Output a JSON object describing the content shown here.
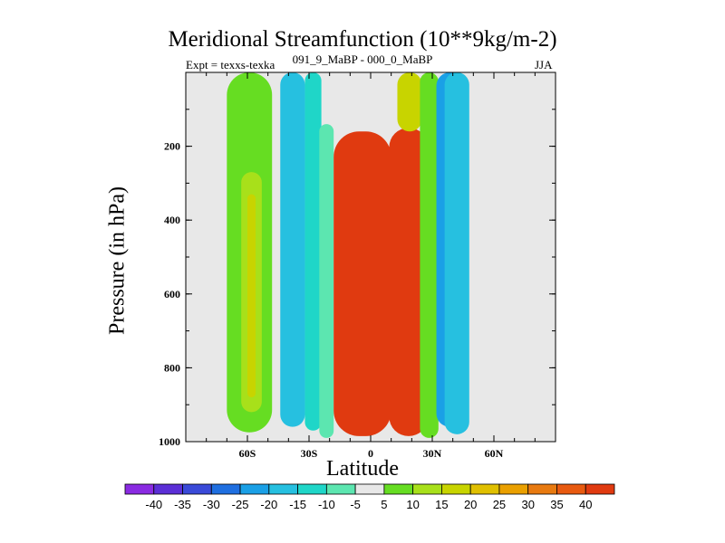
{
  "chart_data": {
    "type": "heatmap",
    "title": "Meridional Streamfunction (10**9kg/m-2)",
    "subtitle_left": "Expt = texxs-texka",
    "subtitle_center": "091_9_MaBP - 000_0_MaBP",
    "subtitle_right": "JJA",
    "xlabel": "Latitude",
    "ylabel": "Pressure (in hPa)",
    "xlim": [
      -90,
      90
    ],
    "ylim": [
      1000,
      0
    ],
    "xticks": [
      {
        "value": -60,
        "label": "60S"
      },
      {
        "value": -30,
        "label": "30S"
      },
      {
        "value": 0,
        "label": "0"
      },
      {
        "value": 30,
        "label": "30N"
      },
      {
        "value": 60,
        "label": "60N"
      }
    ],
    "yticks": [
      {
        "value": 200,
        "label": "200"
      },
      {
        "value": 400,
        "label": "400"
      },
      {
        "value": 600,
        "label": "600"
      },
      {
        "value": 800,
        "label": "800"
      },
      {
        "value": 1000,
        "label": "1000"
      }
    ],
    "colorbar": {
      "levels": [
        "-40",
        "-35",
        "-30",
        "-25",
        "-20",
        "-15",
        "-10",
        "-5",
        "5",
        "10",
        "15",
        "20",
        "25",
        "30",
        "35",
        "40"
      ],
      "colors": [
        "#8a2be2",
        "#5b2fd6",
        "#3a4ad8",
        "#1f6fe0",
        "#1aa0e6",
        "#26c0e0",
        "#1fd6c8",
        "#5ce6b0",
        "#e8e8e8",
        "#66dd22",
        "#a8e01a",
        "#c8d400",
        "#e0c000",
        "#eaa000",
        "#e87a10",
        "#e85a10",
        "#e03a10"
      ]
    },
    "contour_regions": [
      {
        "name": "lat-40-green-cell",
        "color": "#66dd22",
        "lat_range": [
          -70,
          -48
        ],
        "p_range": [
          975,
          0
        ]
      },
      {
        "name": "lat-40-core",
        "color": "#a8e01a",
        "lat_range": [
          -63,
          -53
        ],
        "p_range": [
          920,
          270
        ]
      },
      {
        "name": "lat-40-inner-core",
        "color": "#c8d400",
        "lat_range": [
          -60,
          -56
        ],
        "p_range": [
          880,
          330
        ]
      },
      {
        "name": "subtropical-south-cyan",
        "color": "#26c0e0",
        "lat_range": [
          -44,
          -32
        ],
        "p_range": [
          960,
          0
        ]
      },
      {
        "name": "subtropical-south-teal",
        "color": "#1fd6c8",
        "lat_range": [
          -32,
          -24
        ],
        "p_range": [
          970,
          0
        ]
      },
      {
        "name": "tropical-south-edge",
        "color": "#5ce6b0",
        "lat_range": [
          -25,
          -18
        ],
        "p_range": [
          990,
          140
        ]
      },
      {
        "name": "south-hadley-cell",
        "color": "#e03a10",
        "lat_range": [
          -18,
          10
        ],
        "p_range": [
          985,
          160
        ]
      },
      {
        "name": "north-hadley-cell",
        "color": "#e03a10",
        "lat_range": [
          9,
          28
        ],
        "p_range": [
          985,
          150
        ]
      },
      {
        "name": "north-upper-yellow",
        "color": "#c8d400",
        "lat_range": [
          13,
          25
        ],
        "p_range": [
          160,
          0
        ]
      },
      {
        "name": "north-upper-green",
        "color": "#66dd22",
        "lat_range": [
          24,
          33
        ],
        "p_range": [
          990,
          0
        ]
      },
      {
        "name": "north-midlat-blue",
        "color": "#1aa0e6",
        "lat_range": [
          32,
          45
        ],
        "p_range": [
          960,
          0
        ]
      },
      {
        "name": "north-midlat-cyan",
        "color": "#26c0e0",
        "lat_range": [
          36,
          48
        ],
        "p_range": [
          980,
          0
        ]
      }
    ]
  }
}
